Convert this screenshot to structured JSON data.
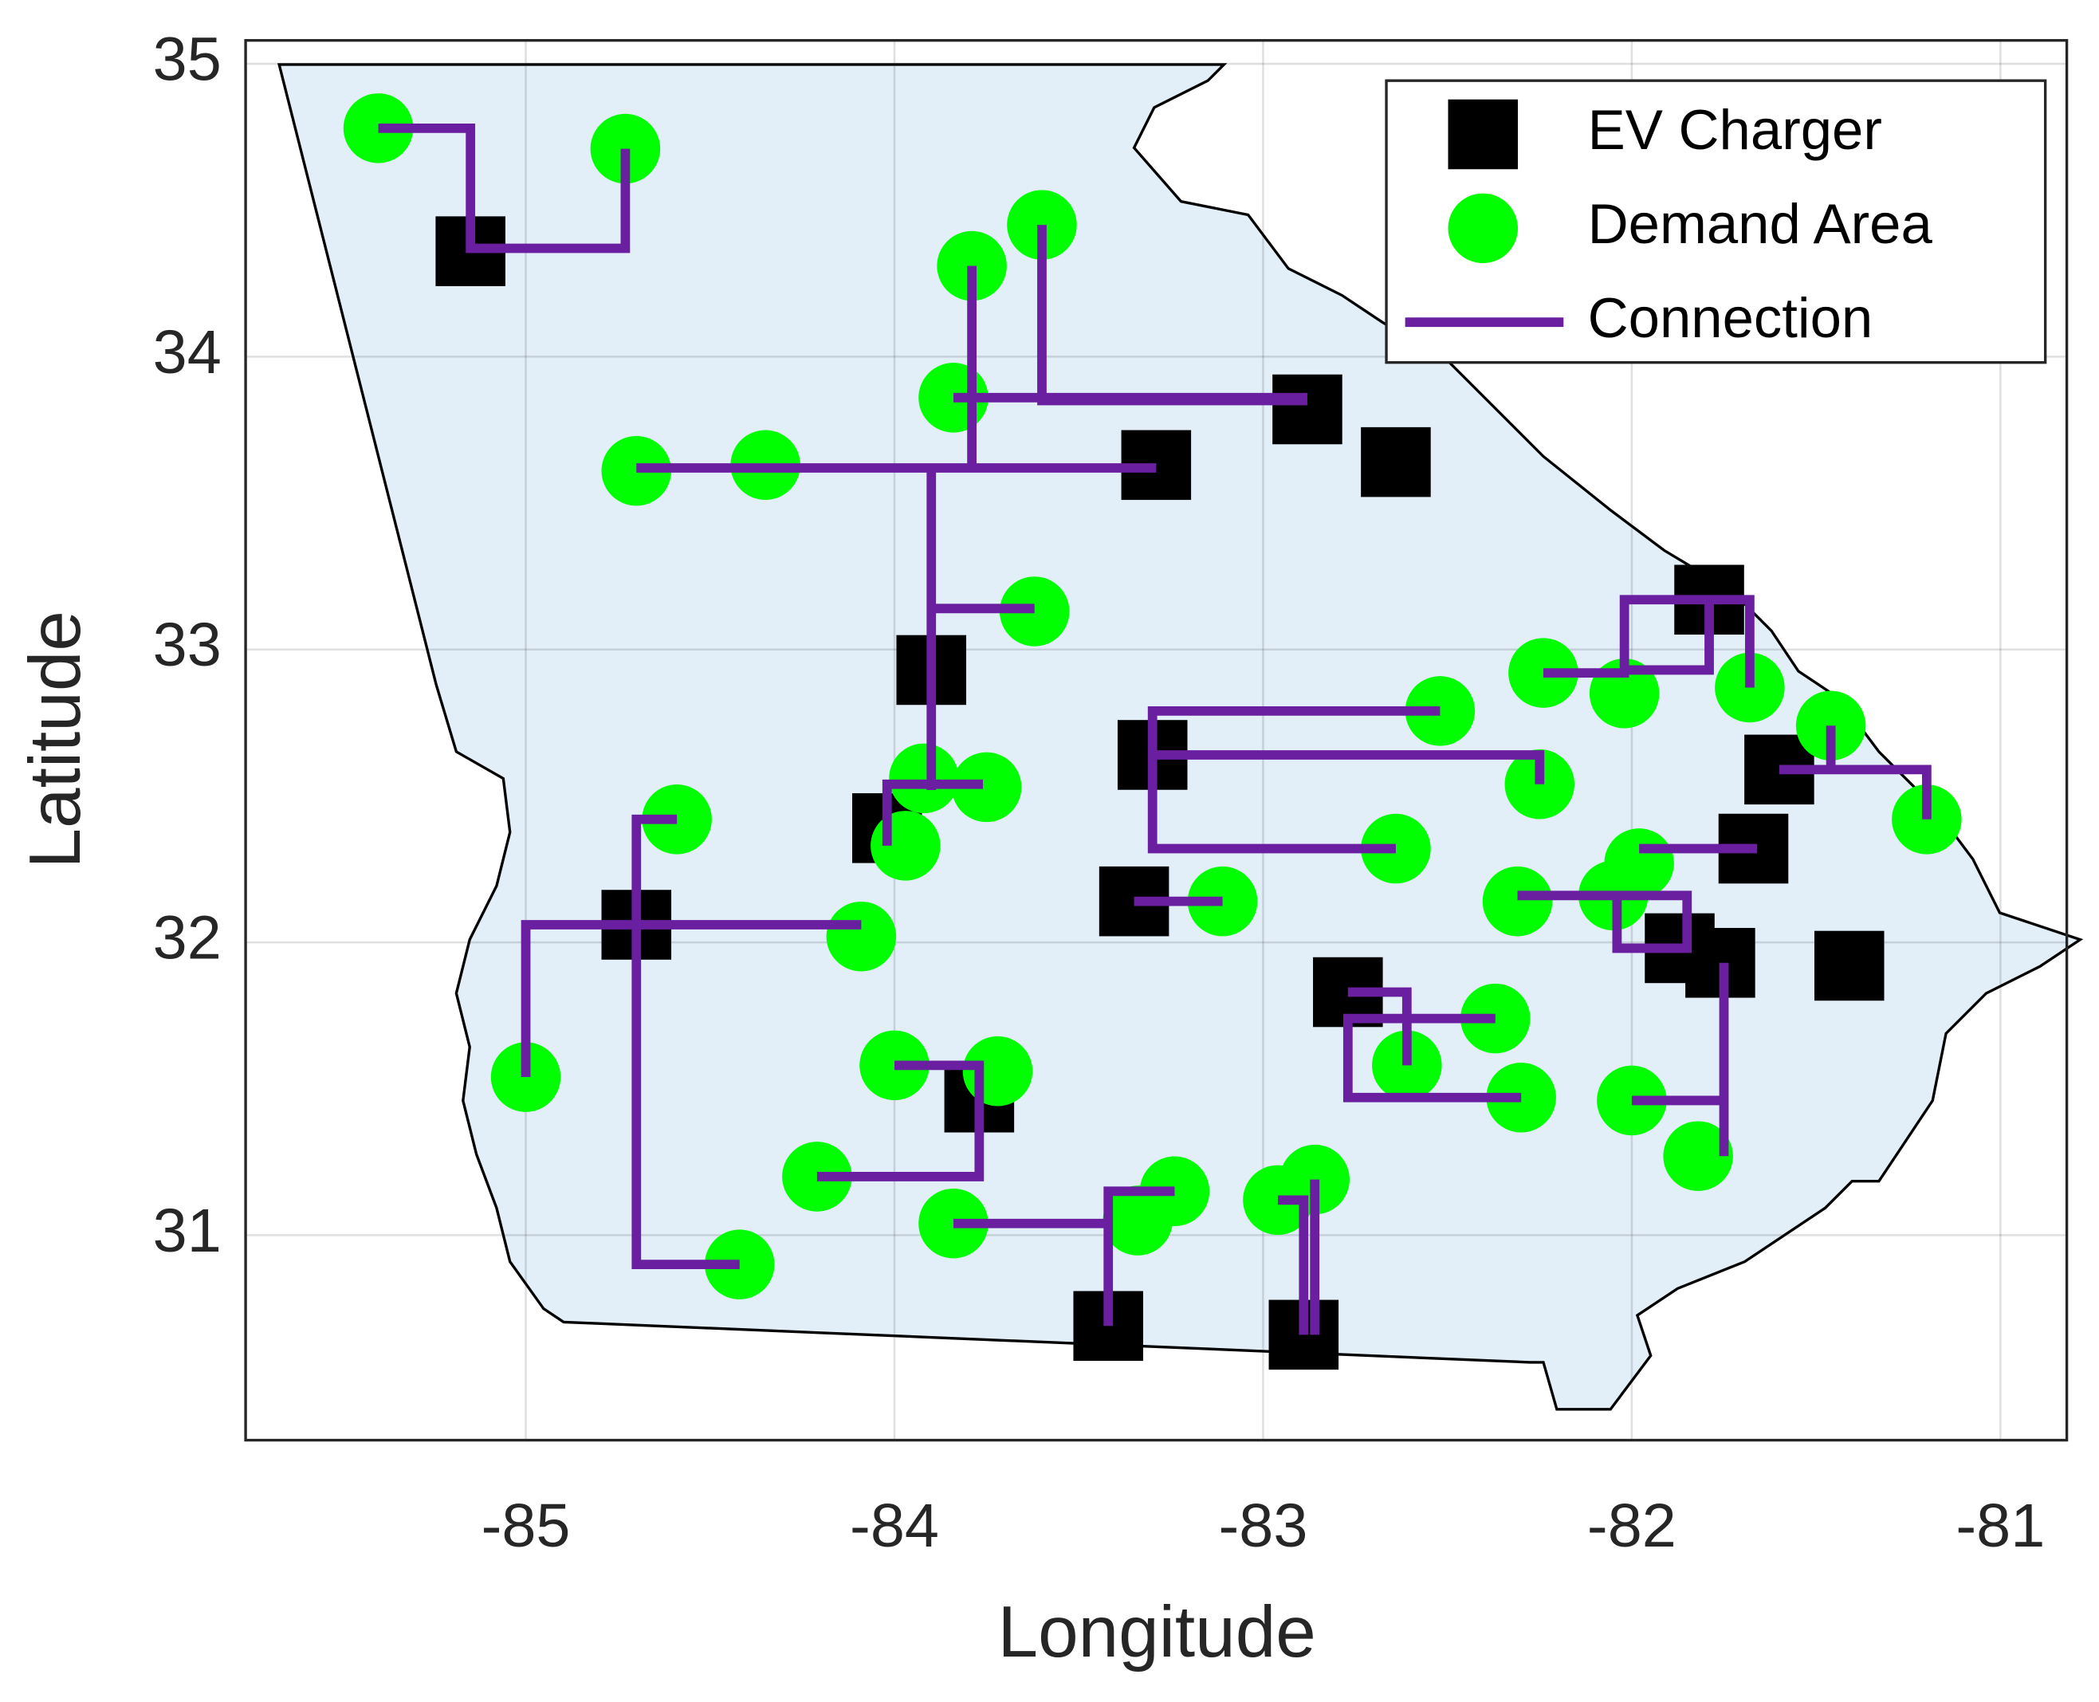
{
  "chart_data": {
    "type": "scatter",
    "xlabel": "Longitude",
    "ylabel": "Latitude",
    "xlim": [
      -85.76,
      -80.82
    ],
    "ylim": [
      30.3,
      35.08
    ],
    "xticks": [
      -85,
      -84,
      -83,
      -82,
      -81
    ],
    "yticks": [
      31,
      32,
      33,
      34,
      35
    ],
    "grid": true,
    "legend": "upper right",
    "series": [
      {
        "name": "EV Charger",
        "color": "#000000",
        "marker": "square",
        "x": [
          -85.15,
          -82.88,
          -83.29,
          -82.64,
          -81.79,
          -83.9,
          -83.3,
          -84.02,
          -81.6,
          -81.67,
          -84.7,
          -83.35,
          -82.77,
          -81.87,
          -81.76,
          -81.41,
          -83.77,
          -83.42,
          -82.89
        ],
        "y": [
          34.36,
          33.82,
          33.63,
          33.64,
          33.17,
          32.93,
          32.64,
          32.39,
          32.59,
          32.32,
          32.06,
          32.14,
          31.83,
          31.98,
          31.93,
          31.92,
          31.47,
          30.69,
          30.66
        ]
      },
      {
        "name": "Demand Area",
        "color": "#00ff00",
        "marker": "circle",
        "x": [
          -85.4,
          -84.73,
          -83.6,
          -83.79,
          -83.84,
          -84.7,
          -84.35,
          -83.62,
          -82.24,
          -82.02,
          -81.68,
          -81.46,
          -82.52,
          -82.25,
          -81.2,
          -84.59,
          -83.92,
          -83.75,
          -83.97,
          -82.64,
          -81.98,
          -82.05,
          -82.31,
          -83.11,
          -84.09,
          -85.0,
          -84.0,
          -83.72,
          -82.37,
          -82.61,
          -82.3,
          -82.0,
          -81.82,
          -84.21,
          -83.84,
          -83.24,
          -83.34,
          -82.96,
          -82.86,
          -84.42
        ],
        "y": [
          34.78,
          34.71,
          34.45,
          34.31,
          33.86,
          33.61,
          33.63,
          33.13,
          32.92,
          32.85,
          32.87,
          32.74,
          32.79,
          32.54,
          32.42,
          32.42,
          32.56,
          32.53,
          32.33,
          32.32,
          32.27,
          32.16,
          32.14,
          32.14,
          32.02,
          31.54,
          31.58,
          31.56,
          31.74,
          31.58,
          31.47,
          31.46,
          31.27,
          31.2,
          31.04,
          31.15,
          31.05,
          31.12,
          31.19,
          30.9
        ]
      },
      {
        "name": "Connection",
        "color": "#6a1fa0",
        "marker": "line",
        "x": [
          -85.4,
          -85.15,
          -85.15,
          -84.73,
          -84.73,
          null,
          -83.6,
          -83.6,
          -82.88,
          null,
          -83.84,
          -82.88,
          null,
          -84.7,
          -83.29,
          null,
          -83.79,
          -83.79,
          null,
          -83.9,
          -83.9,
          null,
          -83.9,
          -83.62,
          null,
          -84.02,
          -84.02,
          -83.76,
          null,
          -82.52,
          -83.3,
          -83.3,
          -82.64,
          null,
          -82.25,
          -82.25,
          -83.3,
          null,
          -83.35,
          -83.11,
          null,
          -82.24,
          -82.02,
          -82.02,
          -81.68,
          -81.68,
          null,
          -81.79,
          -81.79,
          -82.02,
          null,
          -81.46,
          -81.46,
          -81.2,
          -81.2,
          null,
          -81.6,
          -81.46,
          null,
          -81.98,
          -81.66,
          null,
          -82.31,
          -81.85,
          -81.85,
          -82.04,
          -82.04,
          null,
          -84.09,
          -85.0,
          -85.0,
          null,
          -84.59,
          -84.7,
          -84.7,
          -84.42,
          null,
          -82.37,
          -82.77,
          -82.77,
          -82.3,
          null,
          -82.77,
          -82.61,
          -82.61,
          null,
          -81.75,
          -81.75,
          null,
          -82.0,
          -81.75,
          null,
          -84.0,
          -83.77,
          -83.77,
          -84.21,
          null,
          -83.84,
          -83.42,
          -83.42,
          null,
          -83.42,
          -83.42,
          -83.24,
          null,
          -82.96,
          -82.89,
          -82.89,
          null,
          -82.86,
          -82.86
        ],
        "y": [
          34.78,
          34.78,
          34.37,
          34.37,
          34.71,
          null,
          34.45,
          33.85,
          33.85,
          null,
          33.86,
          33.86,
          null,
          33.62,
          33.62,
          null,
          34.31,
          33.62,
          null,
          33.62,
          32.52,
          null,
          33.14,
          33.14,
          null,
          32.33,
          32.54,
          32.54,
          null,
          32.79,
          32.79,
          32.32,
          32.32,
          null,
          32.54,
          32.64,
          32.64,
          null,
          32.14,
          32.14,
          null,
          32.92,
          32.92,
          33.17,
          33.17,
          32.87,
          null,
          33.17,
          32.93,
          32.93,
          null,
          32.74,
          32.59,
          32.59,
          32.42,
          null,
          32.59,
          32.59,
          null,
          32.32,
          32.32,
          null,
          32.16,
          32.16,
          31.98,
          31.98,
          32.16,
          null,
          32.06,
          32.06,
          31.54,
          null,
          32.42,
          32.42,
          30.9,
          30.9,
          null,
          31.74,
          31.74,
          31.47,
          31.47,
          null,
          31.83,
          31.83,
          31.58,
          null,
          31.93,
          31.27,
          null,
          31.46,
          31.46,
          null,
          31.58,
          31.58,
          31.2,
          31.2,
          null,
          31.04,
          31.04,
          30.69,
          null,
          31.04,
          31.15,
          31.15,
          null,
          31.12,
          31.12,
          30.66,
          null,
          31.19,
          30.66
        ]
      }
    ]
  }
}
